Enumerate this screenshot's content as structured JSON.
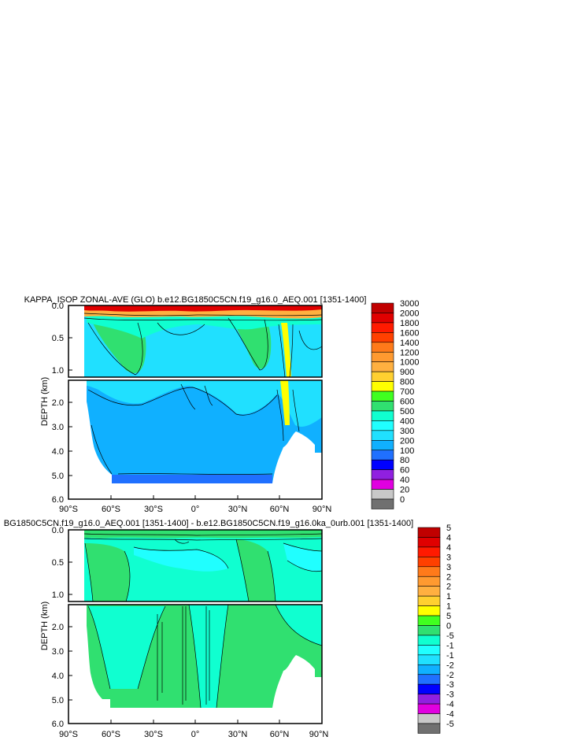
{
  "chart_data": [
    {
      "type": "heatmap",
      "title": "KAPPA_ISOP ZONAL-AVE (GLO) b.e12.BG1850C5CN.f19_g16.0_AEQ.001 [1351-1400]",
      "ylabel": "DEPTH (km)",
      "xlabel": "",
      "x_ticks": [
        "90°S",
        "60°S",
        "30°S",
        "0°",
        "30°N",
        "60°N",
        "90°N"
      ],
      "y_ticks_upper": [
        "0.0",
        "0.5",
        "1.0"
      ],
      "y_ticks_lower": [
        "2.0",
        "3.0",
        "4.0",
        "5.0",
        "6.0"
      ],
      "legend": {
        "position": "right",
        "labels": [
          "3000",
          "2000",
          "1800",
          "1600",
          "1400",
          "1200",
          "1000",
          "900",
          "800",
          "700",
          "600",
          "500",
          "400",
          "300",
          "200",
          "100",
          "80",
          "60",
          "40",
          "20",
          "0"
        ],
        "colors": [
          "#c00000",
          "#e00000",
          "#ff1a00",
          "#ff4000",
          "#ff7a1a",
          "#ff9a30",
          "#ffb040",
          "#ffd030",
          "#ffff00",
          "#40ff20",
          "#30e070",
          "#10ffd0",
          "#20ffff",
          "#20e0ff",
          "#10b0ff",
          "#2070ff",
          "#0000ff",
          "#9020e0",
          "#e000e0",
          "#c8c8c8",
          "#707070"
        ]
      }
    },
    {
      "type": "heatmap",
      "title": "BG1850C5CN.f19_g16.0_AEQ.001 [1351-1400] - b.e12.BG1850C5CN.f19_g16.0ka_0urb.001 [1351-1400]",
      "ylabel": "DEPTH (km)",
      "xlabel": "",
      "x_ticks": [
        "90°S",
        "60°S",
        "30°S",
        "0°",
        "30°N",
        "60°N",
        "90°N"
      ],
      "y_ticks_upper": [
        "0.0",
        "0.5",
        "1.0"
      ],
      "y_ticks_lower": [
        "2.0",
        "3.0",
        "4.0",
        "5.0",
        "6.0"
      ],
      "legend": {
        "position": "right",
        "labels": [
          "5",
          "4",
          "4",
          "3",
          "3",
          "2",
          "2",
          "1",
          "1",
          "5",
          "0",
          "-5",
          "-1",
          "-1",
          "-2",
          "-2",
          "-3",
          "-3",
          "-4",
          "-4",
          "-5"
        ],
        "colors": [
          "#c00000",
          "#e00000",
          "#ff1a00",
          "#ff4000",
          "#ff7a1a",
          "#ff9a30",
          "#ffb040",
          "#ffd030",
          "#ffff00",
          "#40ff20",
          "#30e070",
          "#10ffd0",
          "#20ffff",
          "#20e0ff",
          "#10b0ff",
          "#2070ff",
          "#0000ff",
          "#9020e0",
          "#e000e0",
          "#c8c8c8",
          "#707070"
        ]
      }
    }
  ]
}
